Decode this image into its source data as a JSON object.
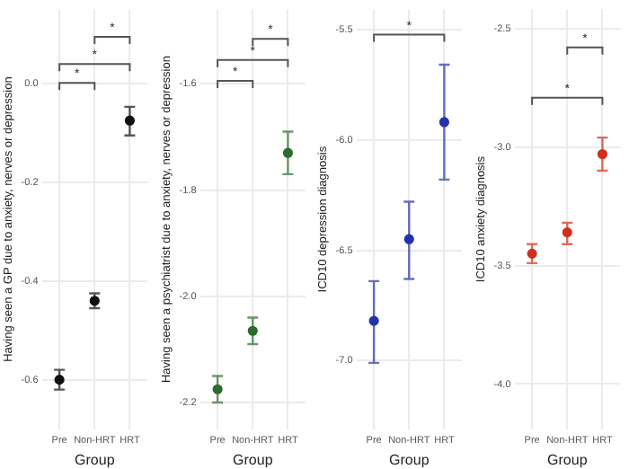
{
  "chart_data": [
    {
      "type": "scatter",
      "xlabel": "Group",
      "ylabel": "Having seen a GP due to anxiety, nerves or depression",
      "categories": [
        "Pre",
        "Non-HRT",
        "HRT"
      ],
      "series": [
        {
          "color": "#111111",
          "values": [
            -0.6,
            -0.44,
            -0.075
          ],
          "errors": [
            [
              -0.62,
              -0.58
            ],
            [
              -0.455,
              -0.425
            ],
            [
              -0.105,
              -0.047
            ]
          ]
        }
      ],
      "ylim": [
        -0.7,
        0.15
      ],
      "yticks": [
        -0.6,
        -0.4,
        -0.2,
        {
          "value": 0,
          "label": "0.0"
        }
      ],
      "grid": true,
      "marker": "circle",
      "annotations": [
        "*",
        "*",
        "*"
      ]
    },
    {
      "type": "scatter",
      "xlabel": "Group",
      "ylabel": "Having seen a psychiatrist due to anxiety, nerves or depression",
      "categories": [
        "Pre",
        "Non-HRT",
        "HRT"
      ],
      "series": [
        {
          "color": "#2e6b2e",
          "values": [
            -2.175,
            -2.065,
            -1.73
          ],
          "errors": [
            [
              -2.2,
              -2.15
            ],
            [
              -2.09,
              -2.04
            ],
            [
              -1.77,
              -1.69
            ]
          ]
        }
      ],
      "ylim": [
        -2.25,
        -1.46
      ],
      "yticks": [
        -2.2,
        {
          "value": -2,
          "label": "-2.0"
        },
        -1.8,
        -1.6
      ],
      "grid": true,
      "marker": "circle",
      "annotations": [
        "*",
        "*",
        "*"
      ]
    },
    {
      "type": "scatter",
      "xlabel": "Group",
      "ylabel": "ICD10 depression diagnosis",
      "categories": [
        "Pre",
        "Non-HRT",
        "HRT"
      ],
      "series": [
        {
          "color": "#2433a8",
          "values": [
            -6.82,
            -6.45,
            -5.92
          ],
          "errors": [
            [
              -7.01,
              -6.64
            ],
            [
              -6.63,
              -6.28
            ],
            [
              -6.18,
              -5.66
            ]
          ]
        }
      ],
      "ylim": [
        -7.31,
        -5.41
      ],
      "yticks": [
        {
          "value": -7,
          "label": "-7.0"
        },
        -6.5,
        {
          "value": -6,
          "label": "-6.0"
        },
        -5.5
      ],
      "grid": true,
      "marker": "circle",
      "annotations": [
        "*"
      ]
    },
    {
      "type": "scatter",
      "xlabel": "Group",
      "ylabel": "ICD10 anxiety diagnosis",
      "categories": [
        "Pre",
        "Non-HRT",
        "HRT"
      ],
      "series": [
        {
          "color": "#d03020",
          "values": [
            -3.45,
            -3.36,
            -3.03
          ],
          "errors": [
            [
              -3.49,
              -3.41
            ],
            [
              -3.41,
              -3.32
            ],
            [
              -3.1,
              -2.96
            ]
          ]
        }
      ],
      "ylim": [
        -4.19,
        -2.42
      ],
      "yticks": [
        {
          "value": -4,
          "label": "-4.0"
        },
        -3.5,
        {
          "value": -3,
          "label": "-3.0"
        },
        -2.5
      ],
      "grid": true,
      "marker": "circle",
      "annotations": [
        "*",
        "*"
      ]
    }
  ]
}
